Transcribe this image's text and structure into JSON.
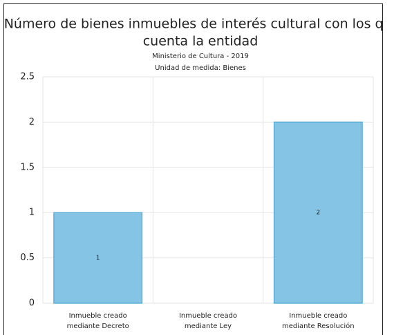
{
  "chart_data": {
    "type": "bar",
    "title": [
      "Número de bienes inmuebles de interés cultural con los que",
      "cuenta la entidad"
    ],
    "subtitle": [
      "Ministerio de Cultura - 2019",
      "Unidad de medida: Bienes"
    ],
    "categories": [
      [
        "Inmueble creado",
        "mediante Decreto"
      ],
      [
        "Inmueble creado",
        "mediante Ley"
      ],
      [
        "Inmueble creado",
        "mediante Resolución"
      ]
    ],
    "values": [
      1,
      0,
      2
    ],
    "color": "#85c4e4",
    "edge_color": "#5aafd8",
    "ylim": [
      0,
      2.5
    ],
    "yticks": [
      0,
      0.5,
      1,
      1.5,
      2,
      2.5
    ],
    "grid": true
  }
}
